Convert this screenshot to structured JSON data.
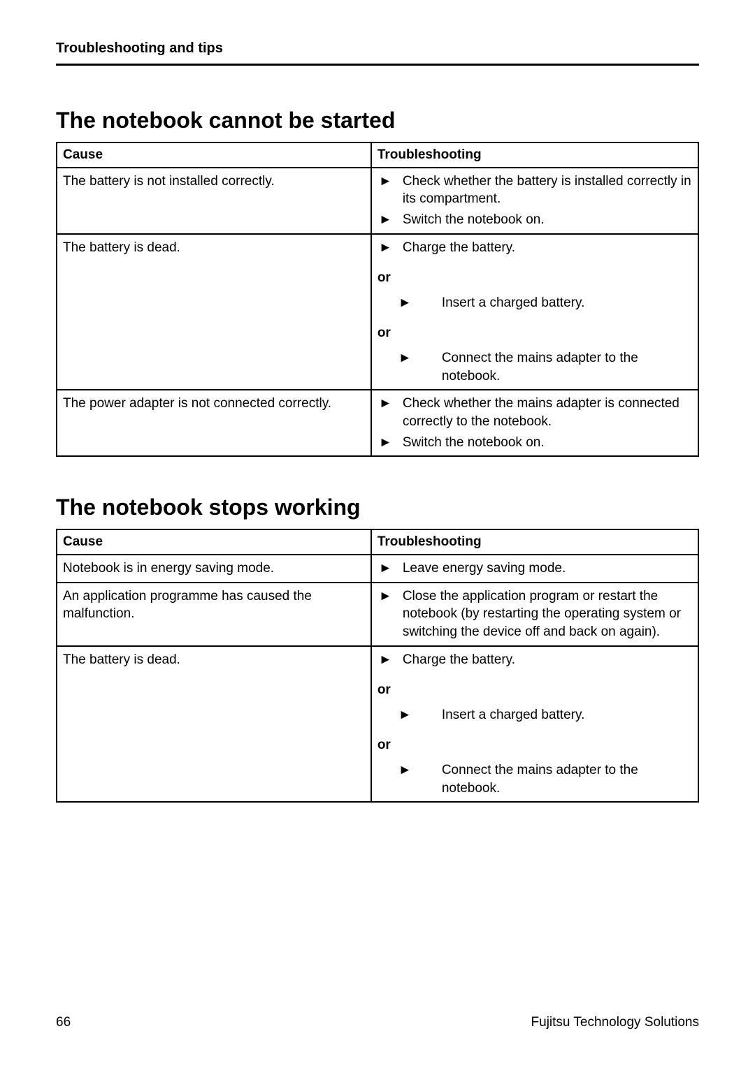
{
  "header": {
    "running_title": "Troubleshooting and tips"
  },
  "sections": [
    {
      "title": "The notebook cannot be started",
      "columns": {
        "cause": "Cause",
        "fix": "Troubleshooting"
      },
      "rows": [
        {
          "cause": "The battery is not installed correctly.",
          "fix_groups": [
            {
              "steps": [
                "Check whether the battery is installed correctly in its compartment.",
                "Switch the notebook on."
              ]
            }
          ]
        },
        {
          "cause": "The battery is dead.",
          "fix_groups": [
            {
              "steps": [
                "Charge the battery."
              ]
            },
            {
              "or": "or",
              "steps": [
                "Insert a charged battery."
              ]
            },
            {
              "or": "or",
              "steps": [
                "Connect the mains adapter to the notebook."
              ]
            }
          ]
        },
        {
          "cause": "The power adapter is not connected correctly.",
          "fix_groups": [
            {
              "steps": [
                "Check whether the mains adapter is connected correctly to the notebook.",
                "Switch the notebook on."
              ]
            }
          ]
        }
      ]
    },
    {
      "title": "The notebook stops working",
      "columns": {
        "cause": "Cause",
        "fix": "Troubleshooting"
      },
      "rows": [
        {
          "cause": "Notebook is in energy saving mode.",
          "fix_groups": [
            {
              "steps": [
                "Leave energy saving mode."
              ]
            }
          ]
        },
        {
          "cause": "An application programme has caused the malfunction.",
          "fix_groups": [
            {
              "steps": [
                "Close the application program or restart the notebook (by restarting the operating system or switching the device off and back on again)."
              ]
            }
          ]
        },
        {
          "cause": "The battery is dead.",
          "fix_groups": [
            {
              "steps": [
                "Charge the battery."
              ]
            },
            {
              "or": "or",
              "steps": [
                "Insert a charged battery."
              ]
            },
            {
              "or": "or",
              "steps": [
                "Connect the mains adapter to the notebook."
              ]
            }
          ]
        }
      ]
    }
  ],
  "footer": {
    "page_number": "66",
    "brand": "Fujitsu Technology Solutions"
  },
  "glyphs": {
    "arrow": "►"
  },
  "colors": {
    "text": "#000000",
    "background": "#ffffff",
    "rule": "#000000",
    "border": "#000000"
  },
  "typography": {
    "body_font_size_pt": 14,
    "heading_font_size_pt": 24,
    "running_header_font_size_pt": 15,
    "font_family": "Arial"
  },
  "layout": {
    "table_cause_col_pct": 49,
    "table_fix_col_pct": 51
  }
}
